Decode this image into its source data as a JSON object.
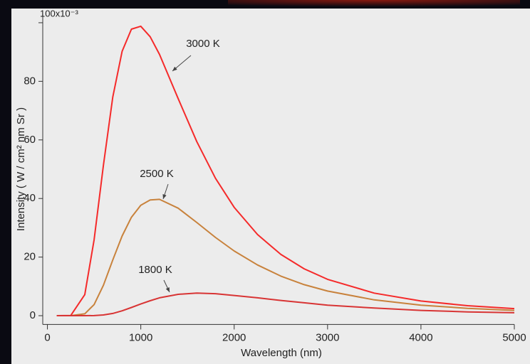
{
  "chart_data": {
    "type": "line",
    "x_label": "Wavelength (nm)",
    "y_label": "Intensity ( W / cm² nm Sr )",
    "x": [
      100,
      250,
      400,
      500,
      600,
      700,
      800,
      900,
      1000,
      1100,
      1200,
      1400,
      1600,
      1800,
      2000,
      2250,
      2500,
      2750,
      3000,
      3500,
      4000,
      4500,
      5000
    ],
    "series": [
      {
        "name": "3000 K",
        "color": "#f52a2a",
        "values": [
          0,
          0.06,
          7.2,
          25.9,
          51.4,
          74.6,
          90.2,
          97.8,
          98.8,
          95.2,
          89.2,
          74.1,
          59.4,
          46.9,
          37.0,
          27.7,
          20.9,
          16.0,
          12.4,
          7.7,
          5.0,
          3.4,
          2.4
        ]
      },
      {
        "name": "2500 K",
        "color": "#c8823c",
        "values": [
          0,
          0,
          0.65,
          3.8,
          10.4,
          19.0,
          27.2,
          33.6,
          37.7,
          39.5,
          39.7,
          36.7,
          31.8,
          26.7,
          22.1,
          17.3,
          13.5,
          10.6,
          8.4,
          5.4,
          3.6,
          2.5,
          1.8
        ]
      },
      {
        "name": "1800 K",
        "color": "#d83434",
        "values": [
          0,
          0,
          0,
          0.04,
          0.25,
          0.77,
          1.66,
          2.8,
          4.0,
          5.1,
          6.1,
          7.3,
          7.7,
          7.5,
          6.9,
          6.1,
          5.2,
          4.4,
          3.6,
          2.6,
          1.8,
          1.3,
          1.0
        ]
      }
    ],
    "xlim": [
      -50,
      5000
    ],
    "xticks": [
      0,
      1000,
      2000,
      3000,
      4000,
      5000
    ],
    "ylim": [
      -3,
      103
    ],
    "yticks": [
      0,
      20,
      40,
      60,
      80,
      {
        "value": 100,
        "label": "100x10⁻³"
      }
    ]
  }
}
